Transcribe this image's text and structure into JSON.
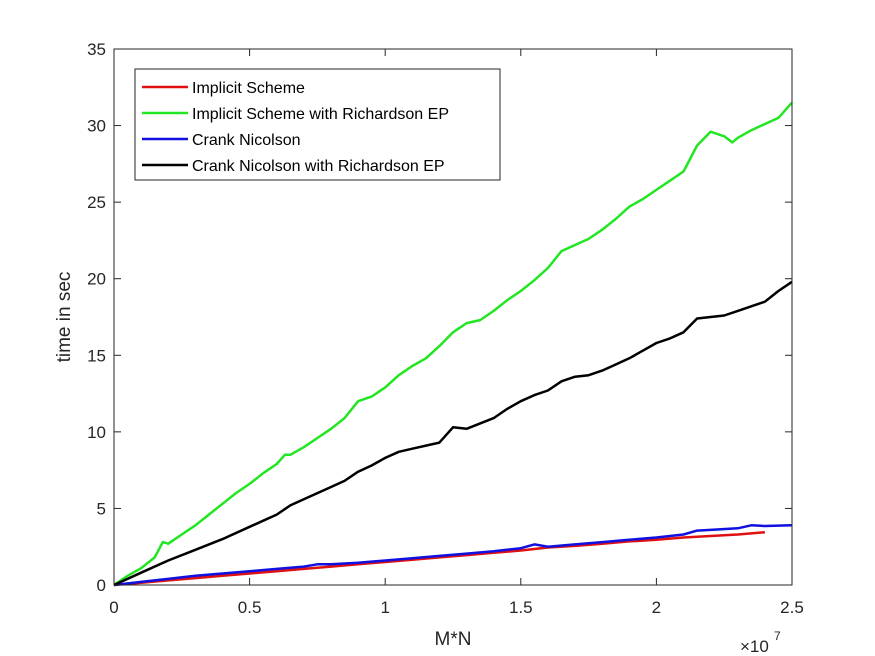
{
  "chart_data": {
    "type": "line",
    "xlabel": "M*N",
    "ylabel": "time in sec",
    "x_exponent_base": "×10",
    "x_exponent_power": "7",
    "xlim": [
      0,
      2.5
    ],
    "ylim": [
      0,
      35
    ],
    "xticks": [
      0,
      0.5,
      1,
      1.5,
      2,
      2.5
    ],
    "xtick_labels": [
      "0",
      "0.5",
      "1",
      "1.5",
      "2",
      "2.5"
    ],
    "yticks": [
      0,
      5,
      10,
      15,
      20,
      25,
      30,
      35
    ],
    "ytick_labels": [
      "0",
      "5",
      "10",
      "15",
      "20",
      "25",
      "30",
      "35"
    ],
    "grid": false,
    "legend_position": "top-left",
    "series": [
      {
        "name": "Implicit Scheme",
        "color": "#e01010",
        "points": [
          [
            0,
            0
          ],
          [
            0.1,
            0.15
          ],
          [
            0.2,
            0.3
          ],
          [
            0.3,
            0.45
          ],
          [
            0.4,
            0.6
          ],
          [
            0.5,
            0.75
          ],
          [
            0.6,
            0.9
          ],
          [
            0.7,
            1.05
          ],
          [
            0.8,
            1.2
          ],
          [
            0.9,
            1.35
          ],
          [
            1.0,
            1.5
          ],
          [
            1.1,
            1.65
          ],
          [
            1.2,
            1.8
          ],
          [
            1.3,
            1.95
          ],
          [
            1.4,
            2.1
          ],
          [
            1.5,
            2.25
          ],
          [
            1.6,
            2.45
          ],
          [
            1.7,
            2.55
          ],
          [
            1.8,
            2.7
          ],
          [
            1.9,
            2.85
          ],
          [
            2.0,
            2.95
          ],
          [
            2.1,
            3.1
          ],
          [
            2.2,
            3.2
          ],
          [
            2.3,
            3.3
          ],
          [
            2.4,
            3.45
          ]
        ]
      },
      {
        "name": "Implicit Scheme with Richardson EP",
        "color": "#22e622",
        "points": [
          [
            0,
            0
          ],
          [
            0.05,
            0.6
          ],
          [
            0.1,
            1.1
          ],
          [
            0.15,
            1.8
          ],
          [
            0.18,
            2.8
          ],
          [
            0.2,
            2.7
          ],
          [
            0.25,
            3.3
          ],
          [
            0.3,
            3.9
          ],
          [
            0.35,
            4.6
          ],
          [
            0.4,
            5.3
          ],
          [
            0.45,
            6.0
          ],
          [
            0.5,
            6.6
          ],
          [
            0.55,
            7.3
          ],
          [
            0.6,
            7.9
          ],
          [
            0.63,
            8.5
          ],
          [
            0.65,
            8.5
          ],
          [
            0.7,
            9.0
          ],
          [
            0.75,
            9.6
          ],
          [
            0.8,
            10.2
          ],
          [
            0.85,
            10.9
          ],
          [
            0.9,
            12.0
          ],
          [
            0.95,
            12.3
          ],
          [
            1.0,
            12.9
          ],
          [
            1.05,
            13.7
          ],
          [
            1.1,
            14.3
          ],
          [
            1.15,
            14.8
          ],
          [
            1.2,
            15.6
          ],
          [
            1.25,
            16.5
          ],
          [
            1.3,
            17.1
          ],
          [
            1.35,
            17.3
          ],
          [
            1.4,
            17.9
          ],
          [
            1.45,
            18.6
          ],
          [
            1.5,
            19.2
          ],
          [
            1.55,
            19.9
          ],
          [
            1.6,
            20.7
          ],
          [
            1.65,
            21.8
          ],
          [
            1.7,
            22.2
          ],
          [
            1.75,
            22.6
          ],
          [
            1.8,
            23.2
          ],
          [
            1.85,
            23.9
          ],
          [
            1.9,
            24.7
          ],
          [
            1.95,
            25.2
          ],
          [
            2.0,
            25.8
          ],
          [
            2.05,
            26.4
          ],
          [
            2.1,
            27.0
          ],
          [
            2.15,
            28.7
          ],
          [
            2.2,
            29.6
          ],
          [
            2.25,
            29.3
          ],
          [
            2.28,
            28.9
          ],
          [
            2.3,
            29.2
          ],
          [
            2.35,
            29.7
          ],
          [
            2.4,
            30.1
          ],
          [
            2.45,
            30.5
          ],
          [
            2.5,
            31.5
          ]
        ]
      },
      {
        "name": "Crank Nicolson",
        "color": "#1010e0",
        "points": [
          [
            0,
            0
          ],
          [
            0.1,
            0.2
          ],
          [
            0.2,
            0.4
          ],
          [
            0.3,
            0.6
          ],
          [
            0.4,
            0.75
          ],
          [
            0.5,
            0.9
          ],
          [
            0.6,
            1.05
          ],
          [
            0.7,
            1.2
          ],
          [
            0.75,
            1.35
          ],
          [
            0.8,
            1.35
          ],
          [
            0.9,
            1.45
          ],
          [
            1.0,
            1.6
          ],
          [
            1.1,
            1.75
          ],
          [
            1.2,
            1.9
          ],
          [
            1.3,
            2.05
          ],
          [
            1.4,
            2.2
          ],
          [
            1.5,
            2.4
          ],
          [
            1.55,
            2.65
          ],
          [
            1.6,
            2.5
          ],
          [
            1.7,
            2.65
          ],
          [
            1.8,
            2.8
          ],
          [
            1.9,
            2.95
          ],
          [
            2.0,
            3.1
          ],
          [
            2.1,
            3.3
          ],
          [
            2.15,
            3.55
          ],
          [
            2.2,
            3.6
          ],
          [
            2.3,
            3.7
          ],
          [
            2.35,
            3.9
          ],
          [
            2.4,
            3.85
          ],
          [
            2.5,
            3.9
          ]
        ]
      },
      {
        "name": "Crank Nicolson with Richardson EP",
        "color": "#000000",
        "points": [
          [
            0,
            0
          ],
          [
            0.1,
            0.8
          ],
          [
            0.2,
            1.6
          ],
          [
            0.3,
            2.3
          ],
          [
            0.4,
            3.0
          ],
          [
            0.5,
            3.8
          ],
          [
            0.55,
            4.2
          ],
          [
            0.6,
            4.6
          ],
          [
            0.65,
            5.2
          ],
          [
            0.7,
            5.6
          ],
          [
            0.8,
            6.4
          ],
          [
            0.85,
            6.8
          ],
          [
            0.9,
            7.4
          ],
          [
            0.95,
            7.8
          ],
          [
            1.0,
            8.3
          ],
          [
            1.05,
            8.7
          ],
          [
            1.1,
            8.9
          ],
          [
            1.2,
            9.3
          ],
          [
            1.25,
            10.3
          ],
          [
            1.3,
            10.2
          ],
          [
            1.4,
            10.9
          ],
          [
            1.45,
            11.5
          ],
          [
            1.5,
            12.0
          ],
          [
            1.55,
            12.4
          ],
          [
            1.6,
            12.7
          ],
          [
            1.65,
            13.3
          ],
          [
            1.7,
            13.6
          ],
          [
            1.75,
            13.7
          ],
          [
            1.8,
            14.0
          ],
          [
            1.85,
            14.4
          ],
          [
            1.9,
            14.8
          ],
          [
            1.95,
            15.3
          ],
          [
            2.0,
            15.8
          ],
          [
            2.05,
            16.1
          ],
          [
            2.1,
            16.5
          ],
          [
            2.15,
            17.4
          ],
          [
            2.2,
            17.5
          ],
          [
            2.25,
            17.6
          ],
          [
            2.3,
            17.9
          ],
          [
            2.35,
            18.2
          ],
          [
            2.4,
            18.5
          ],
          [
            2.45,
            19.2
          ],
          [
            2.5,
            19.8
          ]
        ]
      }
    ]
  }
}
